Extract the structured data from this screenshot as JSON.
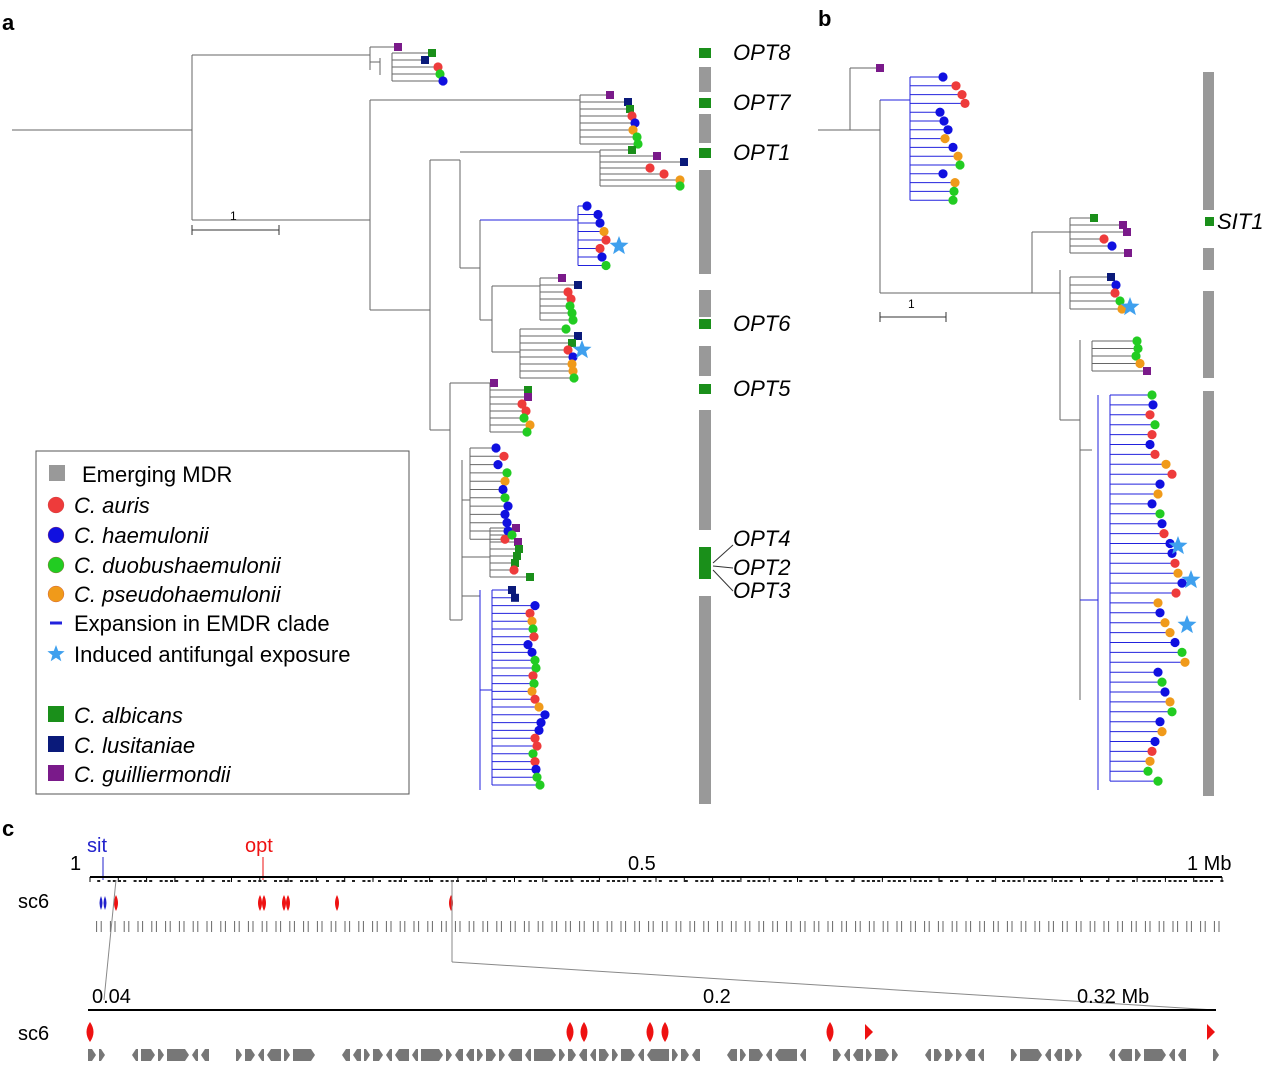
{
  "panels": {
    "a": "a",
    "b": "b",
    "c": "c"
  },
  "colors": {
    "mdr": "#999999",
    "albicans": "#1a8f1a",
    "lusitaniae": "#0a1a7a",
    "guilliermondii": "#7a1a8a",
    "auris": "#ee3b3b",
    "haemulonii": "#1010e0",
    "duobushaemulonii": "#22cc22",
    "pseudohaemulonii": "#f09a1a",
    "expansion": "#2222dd",
    "star": "#3fa0ee",
    "gene_red": "#ee1111",
    "gene_gray": "#777777"
  },
  "panel_a": {
    "gene_labels": [
      "OPT8",
      "OPT7",
      "OPT1",
      "OPT6",
      "OPT5",
      "OPT4",
      "OPT2",
      "OPT3"
    ],
    "scale_label": "1"
  },
  "panel_b": {
    "gene_labels": [
      "SIT1"
    ],
    "scale_label": "1"
  },
  "legend": {
    "items": [
      {
        "label": "Emerging MDR",
        "shape": "rect",
        "color": "mdr",
        "italic": false
      },
      {
        "label": "C. auris",
        "shape": "circle",
        "color": "auris",
        "italic": true
      },
      {
        "label": "C. haemulonii",
        "shape": "circle",
        "color": "haemulonii",
        "italic": true
      },
      {
        "label": "C. duobushaemulonii",
        "shape": "circle",
        "color": "duobushaemulonii",
        "italic": true
      },
      {
        "label": "C. pseudohaemulonii",
        "shape": "circle",
        "color": "pseudohaemulonii",
        "italic": true
      },
      {
        "label": "Expansion in EMDR clade",
        "shape": "line",
        "color": "expansion",
        "italic": false
      },
      {
        "label": "Induced antifungal exposure",
        "shape": "star",
        "color": "star",
        "italic": false
      },
      {
        "label": "C. albicans",
        "shape": "square",
        "color": "albicans",
        "italic": true
      },
      {
        "label": "C. lusitaniae",
        "shape": "square",
        "color": "lusitaniae",
        "italic": true
      },
      {
        "label": "C. guilliermondii",
        "shape": "square",
        "color": "guilliermondii",
        "italic": true
      }
    ]
  },
  "panel_c": {
    "track_label": "sc6",
    "top_axis": {
      "start": "1",
      "mid": "0.5",
      "end": "1 Mb"
    },
    "zoom_axis": {
      "start": "0.04",
      "mid": "0.2",
      "end": "0.32 Mb"
    },
    "annotations": {
      "sit": "sit",
      "opt": "opt"
    }
  }
}
